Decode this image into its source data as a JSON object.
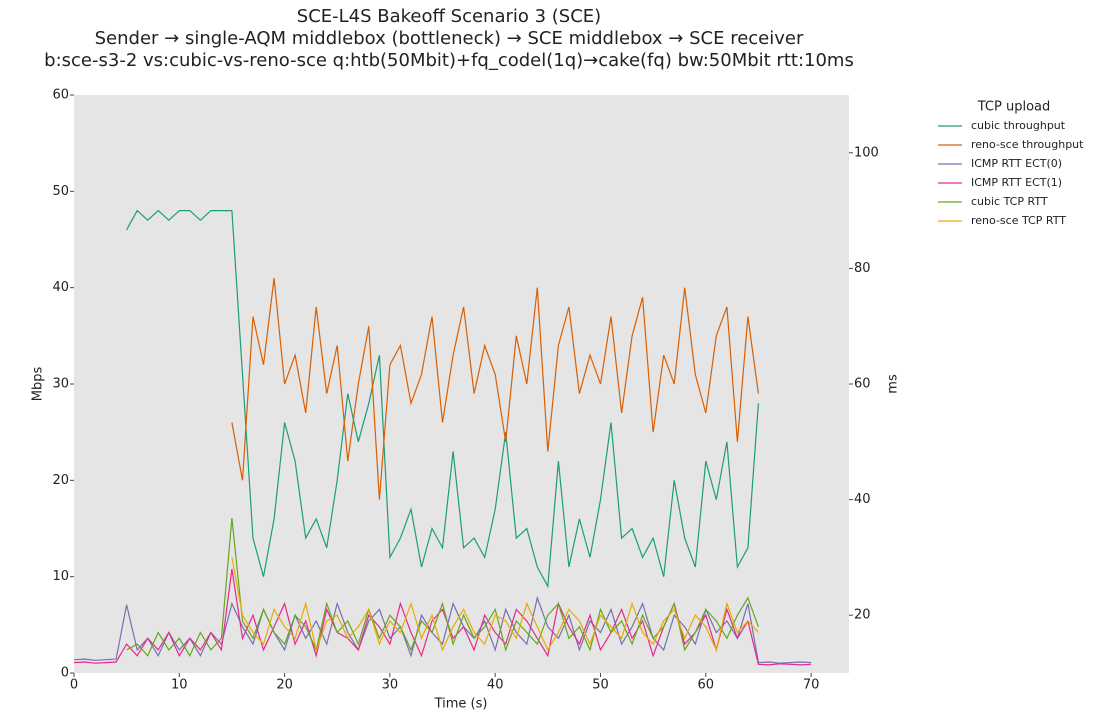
{
  "chart_data": {
    "type": "line",
    "title": "SCE-L4S Bakeoff Scenario 3 (SCE)",
    "subtitle": [
      "Sender → single-AQM middlebox (bottleneck) → SCE middlebox → SCE receiver",
      "b:sce-s3-2 vs:cubic-vs-reno-sce q:htb(50Mbit)+fq_codel(1q)→cake(fq) bw:50Mbit rtt:10ms"
    ],
    "x_label": "Time (s)",
    "y_label": "Mbps",
    "y2_label": "ms",
    "legend_title": "TCP upload",
    "legend": "outside-right",
    "xlim": [
      0,
      73.6
    ],
    "xticks": [
      0,
      10,
      20,
      30,
      40,
      50,
      60,
      70
    ],
    "ylim": [
      0,
      60
    ],
    "yticks": [
      0,
      10,
      20,
      30,
      40,
      50,
      60
    ],
    "y2lim": [
      10,
      110
    ],
    "y2ticks": [
      20,
      40,
      60,
      80,
      100
    ],
    "series": [
      {
        "name": "cubic throughput",
        "color": "#1b9e77",
        "x": [
          5,
          6,
          7,
          8,
          9,
          10,
          11,
          12,
          13,
          14,
          15,
          16,
          17,
          18,
          19,
          20,
          21,
          22,
          23,
          24,
          25,
          26,
          27,
          28,
          29,
          30,
          31,
          32,
          33,
          34,
          35,
          36,
          37,
          38,
          39,
          40,
          41,
          42,
          43,
          44,
          45,
          46,
          47,
          48,
          49,
          50,
          51,
          52,
          53,
          54,
          55,
          56,
          57,
          58,
          59,
          60,
          61,
          62,
          63,
          64,
          65
        ],
        "values": [
          46,
          48,
          47,
          48,
          47,
          48,
          48,
          47,
          48,
          48,
          48,
          31,
          14,
          10,
          16,
          26,
          22,
          14,
          16,
          13,
          20,
          29,
          24,
          28,
          33,
          12,
          14,
          17,
          11,
          15,
          13,
          23,
          13,
          14,
          12,
          17,
          25,
          14,
          15,
          11,
          9,
          22,
          11,
          16,
          12,
          18,
          26,
          14,
          15,
          12,
          14,
          10,
          20,
          14,
          11,
          22,
          18,
          24,
          11,
          13,
          28
        ]
      },
      {
        "name": "reno-sce throughput",
        "color": "#d95f02",
        "x": [
          15,
          16,
          17,
          18,
          19,
          20,
          21,
          22,
          23,
          24,
          25,
          26,
          27,
          28,
          29,
          30,
          31,
          32,
          33,
          34,
          35,
          36,
          37,
          38,
          39,
          40,
          41,
          42,
          43,
          44,
          45,
          46,
          47,
          48,
          49,
          50,
          51,
          52,
          53,
          54,
          55,
          56,
          57,
          58,
          59,
          60,
          61,
          62,
          63,
          64,
          65
        ],
        "values": [
          26,
          20,
          37,
          32,
          41,
          30,
          33,
          27,
          38,
          29,
          34,
          22,
          30,
          36,
          18,
          32,
          34,
          28,
          31,
          37,
          26,
          33,
          38,
          29,
          34,
          31,
          24,
          35,
          30,
          40,
          23,
          34,
          38,
          29,
          33,
          30,
          37,
          27,
          35,
          39,
          25,
          33,
          30,
          40,
          31,
          27,
          35,
          38,
          24,
          37,
          29
        ]
      },
      {
        "name": "ICMP RTT ECT(0)",
        "color": "#7570b3",
        "axis": "y2",
        "x": [
          0,
          1,
          2,
          3,
          4,
          5,
          6,
          7,
          8,
          9,
          10,
          11,
          12,
          13,
          14,
          15,
          16,
          17,
          18,
          19,
          20,
          21,
          22,
          23,
          24,
          25,
          26,
          27,
          28,
          29,
          30,
          31,
          32,
          33,
          34,
          35,
          36,
          37,
          38,
          39,
          40,
          41,
          42,
          43,
          44,
          45,
          46,
          47,
          48,
          49,
          50,
          51,
          52,
          53,
          54,
          55,
          56,
          57,
          58,
          59,
          60,
          61,
          62,
          63,
          64,
          65,
          66,
          67,
          68,
          69,
          70
        ],
        "values": [
          12.3,
          12.4,
          12.2,
          12.3,
          12.4,
          21.8,
          14,
          16,
          13,
          17,
          14,
          16,
          13,
          17,
          15,
          22,
          18,
          15,
          21,
          17,
          14,
          20,
          16,
          19,
          15,
          22,
          17,
          14,
          19,
          21,
          16,
          18,
          13,
          20,
          17,
          15,
          22,
          18,
          16,
          19,
          14,
          21,
          17,
          15,
          23,
          18,
          16,
          20,
          14,
          19,
          17,
          21,
          15,
          18,
          22,
          16,
          14,
          20,
          18,
          15,
          21,
          17,
          19,
          16,
          22,
          11.8,
          11.9,
          11.7,
          11.8,
          11.9,
          11.8
        ]
      },
      {
        "name": "ICMP RTT ECT(1)",
        "color": "#e7298a",
        "axis": "y2",
        "x": [
          0,
          1,
          2,
          3,
          4,
          5,
          6,
          7,
          8,
          9,
          10,
          11,
          12,
          13,
          14,
          15,
          16,
          17,
          18,
          19,
          20,
          21,
          22,
          23,
          24,
          25,
          26,
          27,
          28,
          29,
          30,
          31,
          32,
          33,
          34,
          35,
          36,
          37,
          38,
          39,
          40,
          41,
          42,
          43,
          44,
          45,
          46,
          47,
          48,
          49,
          50,
          51,
          52,
          53,
          54,
          55,
          56,
          57,
          58,
          59,
          60,
          61,
          62,
          63,
          64,
          65,
          66,
          67,
          68,
          69,
          70
        ],
        "values": [
          11.8,
          11.9,
          11.7,
          11.8,
          11.9,
          15,
          13,
          16,
          14,
          17,
          13,
          16,
          14,
          17,
          14,
          28,
          16,
          20,
          14,
          18,
          22,
          15,
          19,
          13,
          21,
          17,
          16,
          14,
          20,
          18,
          15,
          22,
          17,
          13,
          19,
          21,
          16,
          18,
          14,
          20,
          17,
          15,
          21,
          19,
          16,
          13,
          22,
          18,
          15,
          20,
          14,
          17,
          21,
          16,
          19,
          13,
          18,
          22,
          15,
          17,
          20,
          14,
          21,
          16,
          19,
          11.5,
          11.4,
          11.6,
          11.5,
          11.4,
          11.5
        ]
      },
      {
        "name": "cubic TCP RTT",
        "color": "#66a61e",
        "axis": "y2",
        "x": [
          5,
          6,
          7,
          8,
          9,
          10,
          11,
          12,
          13,
          14,
          15,
          16,
          17,
          18,
          19,
          20,
          21,
          22,
          23,
          24,
          25,
          26,
          27,
          28,
          29,
          30,
          31,
          32,
          33,
          34,
          35,
          36,
          37,
          38,
          39,
          40,
          41,
          42,
          43,
          44,
          45,
          46,
          47,
          48,
          49,
          50,
          51,
          52,
          53,
          54,
          55,
          56,
          57,
          58,
          59,
          60,
          61,
          62,
          63,
          64,
          65
        ],
        "values": [
          14,
          15,
          13,
          17,
          14,
          16,
          13,
          17,
          14,
          16,
          36.8,
          19,
          16,
          21,
          17,
          15,
          20,
          18,
          14,
          22,
          17,
          19,
          15,
          21,
          16,
          20,
          18,
          14,
          19,
          17,
          22,
          15,
          20,
          16,
          18,
          21,
          14,
          19,
          17,
          15,
          20,
          22,
          16,
          18,
          14,
          21,
          17,
          19,
          15,
          20,
          16,
          18,
          22,
          14,
          17,
          21,
          19,
          16,
          20,
          23,
          18
        ]
      },
      {
        "name": "reno-sce TCP RTT",
        "color": "#e6ab02",
        "axis": "y2",
        "x": [
          15,
          16,
          17,
          18,
          19,
          20,
          21,
          22,
          23,
          24,
          25,
          26,
          27,
          28,
          29,
          30,
          31,
          32,
          33,
          34,
          35,
          36,
          37,
          38,
          39,
          40,
          41,
          42,
          43,
          44,
          45,
          46,
          47,
          48,
          49,
          50,
          51,
          52,
          53,
          54,
          55,
          56,
          57,
          58,
          59,
          60,
          61,
          62,
          63,
          64,
          65
        ],
        "values": [
          30,
          20,
          17,
          15,
          21,
          18,
          16,
          22,
          14,
          19,
          20,
          16,
          18,
          21,
          15,
          19,
          17,
          22,
          16,
          20,
          14,
          18,
          21,
          17,
          15,
          20,
          19,
          16,
          22,
          18,
          14,
          17,
          21,
          19,
          15,
          20,
          18,
          16,
          22,
          17,
          15,
          19,
          21,
          16,
          20,
          18,
          14,
          22,
          17,
          19,
          17
        ]
      }
    ]
  }
}
